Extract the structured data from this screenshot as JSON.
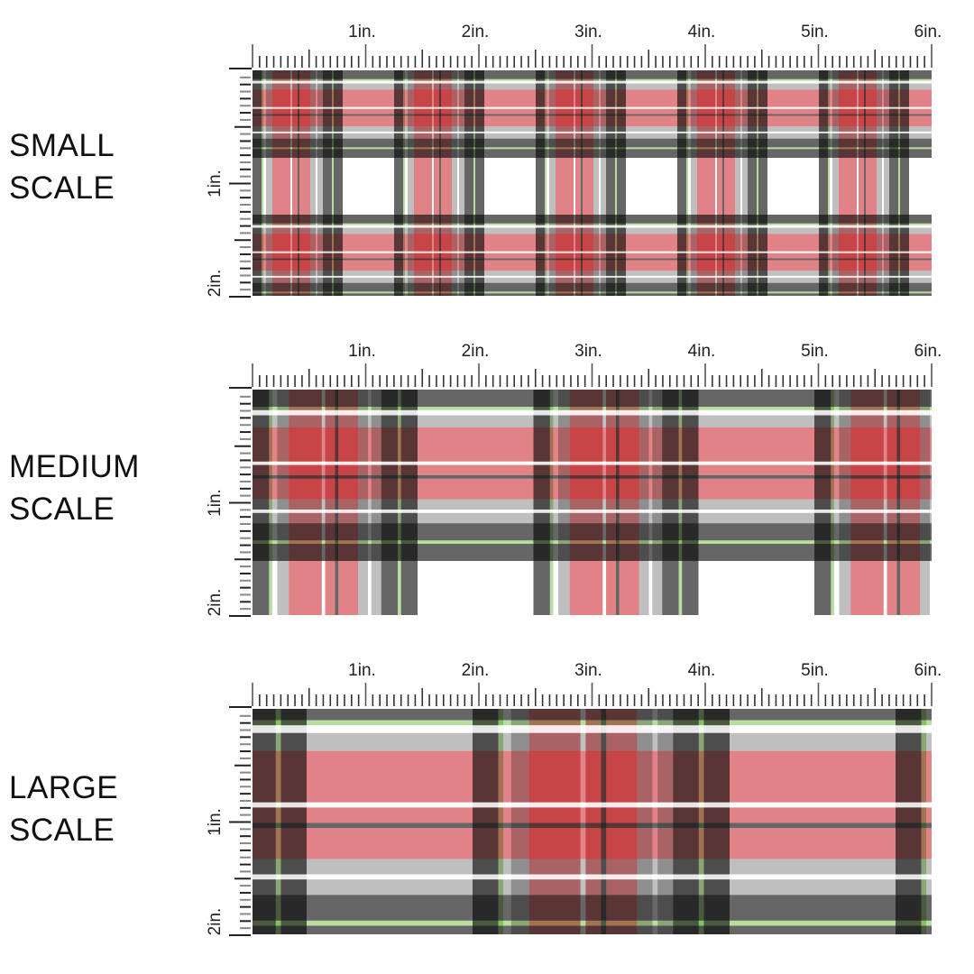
{
  "sections": [
    {
      "line1": "SMALL",
      "line2": "SCALE"
    },
    {
      "line1": "MEDIUM",
      "line2": "SCALE"
    },
    {
      "line1": "LARGE",
      "line2": "SCALE"
    }
  ],
  "ruler": {
    "top_labels": [
      "1in.",
      "2in.",
      "3in.",
      "4in.",
      "5in.",
      "6in."
    ],
    "side_labels": [
      "1in.",
      "2in."
    ]
  },
  "pattern": {
    "name": "red, black, gray and green tartan plaid",
    "colors": {
      "black": "#2b2b2b",
      "gray": "#8a8a8a",
      "red": "#c81e23",
      "green": "#9ed47c",
      "white": "#ffffff"
    }
  }
}
